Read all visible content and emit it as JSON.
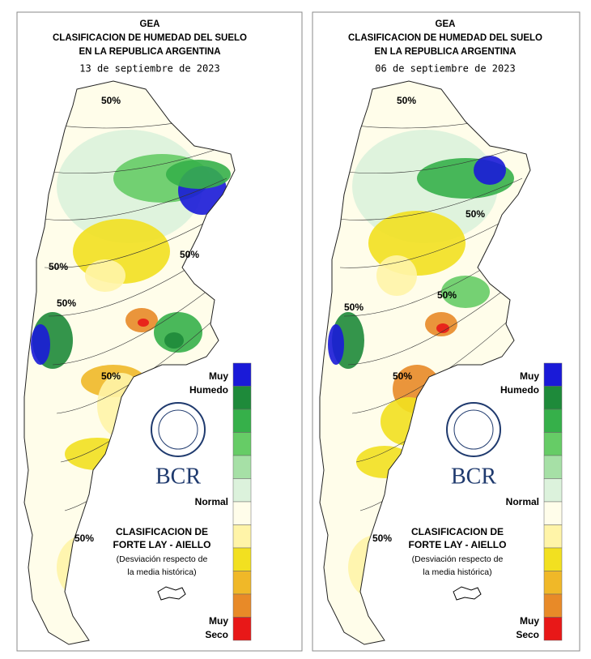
{
  "panels": [
    {
      "title": "GEA",
      "subtitle_lines": [
        "CLASIFICACION DE HUMEDAD DEL SUELO",
        "EN LA REPUBLICA ARGENTINA"
      ],
      "date": "13 de septiembre de 2023",
      "contour_labels": [
        "50%",
        "50%",
        "50%",
        "50%",
        "50%",
        "50%"
      ],
      "legend": {
        "top_label": [
          "Muy",
          "Humedo"
        ],
        "middle_label": "Normal",
        "bottom_label": [
          "Muy",
          "Seco"
        ],
        "colors": [
          "#1a1ad8",
          "#1e8a3a",
          "#36b04a",
          "#66cc66",
          "#a6e0a6",
          "#dcf2dc",
          "#fffdea",
          "#fff4a8",
          "#f2e020",
          "#f0b828",
          "#e88a28",
          "#e81818"
        ]
      },
      "logo": "BCR",
      "method_lines": [
        "CLASIFICACION DE",
        "FORTE LAY - AIELLO"
      ],
      "note_lines": [
        "(Desviación respecto de",
        "la media histórica)"
      ]
    },
    {
      "title": "GEA",
      "subtitle_lines": [
        "CLASIFICACION DE HUMEDAD DEL SUELO",
        "EN LA REPUBLICA ARGENTINA"
      ],
      "date": "06 de septiembre de 2023",
      "contour_labels": [
        "50%",
        "50%",
        "50%",
        "50%",
        "50%",
        "50%"
      ],
      "legend": {
        "top_label": [
          "Muy",
          "Humedo"
        ],
        "middle_label": "Normal",
        "bottom_label": [
          "Muy",
          "Seco"
        ],
        "colors": [
          "#1a1ad8",
          "#1e8a3a",
          "#36b04a",
          "#66cc66",
          "#a6e0a6",
          "#dcf2dc",
          "#fffdea",
          "#fff4a8",
          "#f2e020",
          "#f0b828",
          "#e88a28",
          "#e81818"
        ]
      },
      "logo": "BCR",
      "method_lines": [
        "CLASIFICACION DE",
        "FORTE LAY - AIELLO"
      ],
      "note_lines": [
        "(Desviación respecto de",
        "la media histórica)"
      ]
    }
  ]
}
